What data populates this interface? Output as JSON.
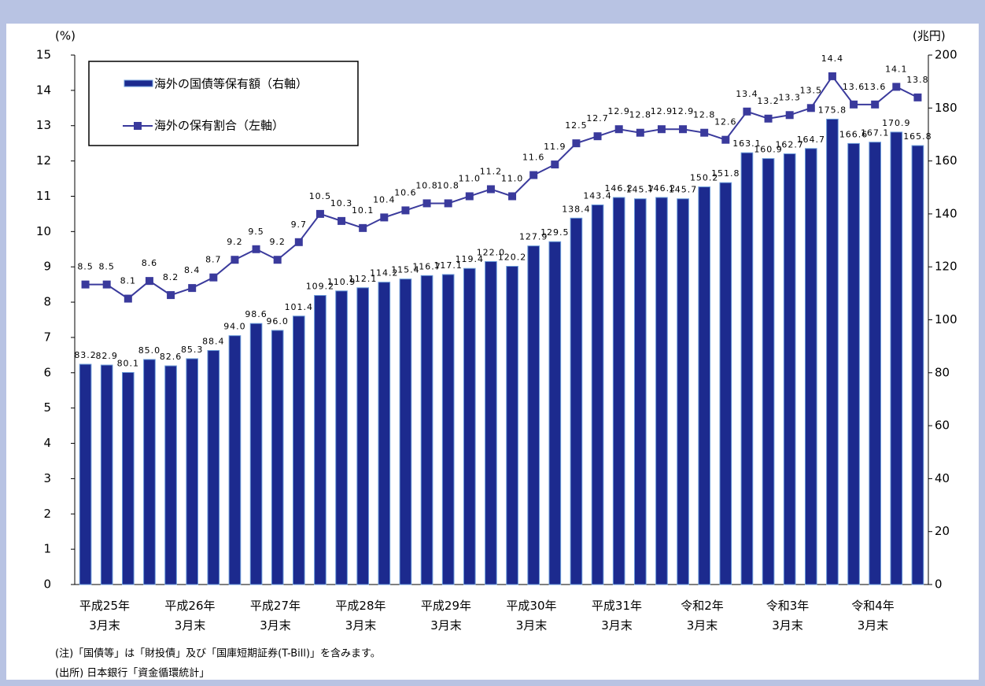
{
  "chart_data": {
    "type": "bar",
    "y_unit_label": "(%)",
    "y2_unit_label": "(兆円)",
    "categories": [
      "平成25年\n3月末",
      null,
      null,
      null,
      "平成26年\n3月末",
      null,
      null,
      null,
      "平成27年\n3月末",
      null,
      null,
      null,
      "平成28年\n3月末",
      null,
      null,
      null,
      "平成29年\n3月末",
      null,
      null,
      null,
      "平成30年\n3月末",
      null,
      null,
      null,
      "平成31年\n3月末",
      null,
      null,
      null,
      "令和2年\n3月末",
      null,
      null,
      null,
      "令和3年\n3月末",
      null,
      null,
      null,
      "令和4年\n3月末",
      null,
      null,
      null
    ],
    "series": [
      {
        "name": "海外の国債等保有額（右軸）",
        "type": "bar",
        "axis": "y2",
        "color": "#1c2a8e",
        "values": [
          83.2,
          82.9,
          80.1,
          85.0,
          82.6,
          85.3,
          88.4,
          94.0,
          98.6,
          96.0,
          101.4,
          109.2,
          110.9,
          112.1,
          114.2,
          115.4,
          116.7,
          117.1,
          119.4,
          122.0,
          120.2,
          127.9,
          129.5,
          138.4,
          143.4,
          146.2,
          145.7,
          146.2,
          145.7,
          150.2,
          151.8,
          163.1,
          160.9,
          162.7,
          164.7,
          175.8,
          166.6,
          167.1,
          170.9,
          165.8
        ],
        "value_labels": [
          "83.2",
          "82.9",
          "80.1",
          "85.0",
          "82.6",
          "85.3",
          "88.4",
          "94.0",
          "98.6",
          "96.0",
          "101.4",
          "109.2",
          "110.9",
          "112.1",
          "114.2",
          "115.4",
          "116.7",
          "117.1",
          "119.4",
          "122.0",
          "120.2",
          "127.9",
          "129.5",
          "138.4",
          "143.4",
          "146.2",
          "145.7",
          "146.2",
          "145.7",
          "150.2",
          "151.8",
          "163.1",
          "160.9",
          "162.7",
          "164.7",
          "175.8",
          "166.6",
          "167.1",
          "170.9",
          "165.8"
        ]
      },
      {
        "name": "海外の保有割合（左軸）",
        "type": "line",
        "axis": "y",
        "color": "#3a3a9c",
        "values": [
          8.5,
          8.5,
          8.1,
          8.6,
          8.2,
          8.4,
          8.7,
          9.2,
          9.5,
          9.2,
          9.7,
          10.5,
          10.3,
          10.1,
          10.4,
          10.6,
          10.8,
          10.8,
          11.0,
          11.2,
          11.0,
          11.6,
          11.9,
          12.5,
          12.7,
          12.9,
          12.8,
          12.9,
          12.9,
          12.8,
          12.6,
          13.4,
          13.2,
          13.3,
          13.5,
          14.4,
          13.6,
          13.6,
          14.1,
          13.8
        ],
        "value_labels": [
          "8.5",
          "8.5",
          "8.1",
          "8.6",
          "8.2",
          "8.4",
          "8.7",
          "9.2",
          "9.5",
          "9.2",
          "9.7",
          "10.5",
          "10.3",
          "10.1",
          "10.4",
          "10.6",
          "10.8",
          "10.8",
          "11.0",
          "11.2",
          "11.0",
          "11.6",
          "11.9",
          "12.5",
          "12.7",
          "12.9",
          "12.8",
          "12.9",
          "12.9",
          "12.8",
          "12.6",
          "13.4",
          "13.2",
          "13.3",
          "13.5",
          "14.4",
          "13.6",
          "13.6",
          "14.1",
          "13.8"
        ]
      }
    ],
    "ylim": [
      0,
      15
    ],
    "yticks": [
      0,
      1,
      2,
      3,
      4,
      5,
      6,
      7,
      8,
      9,
      10,
      11,
      12,
      13,
      14,
      15
    ],
    "y2lim": [
      0,
      200
    ],
    "y2ticks": [
      0,
      20,
      40,
      60,
      80,
      100,
      120,
      140,
      160,
      180,
      200
    ],
    "notes": [
      "(注)「国債等」は「財投債」及び「国庫短期証券(T-Bill)」を含みます。",
      "(出所) 日本銀行「資金循環統計」"
    ]
  }
}
